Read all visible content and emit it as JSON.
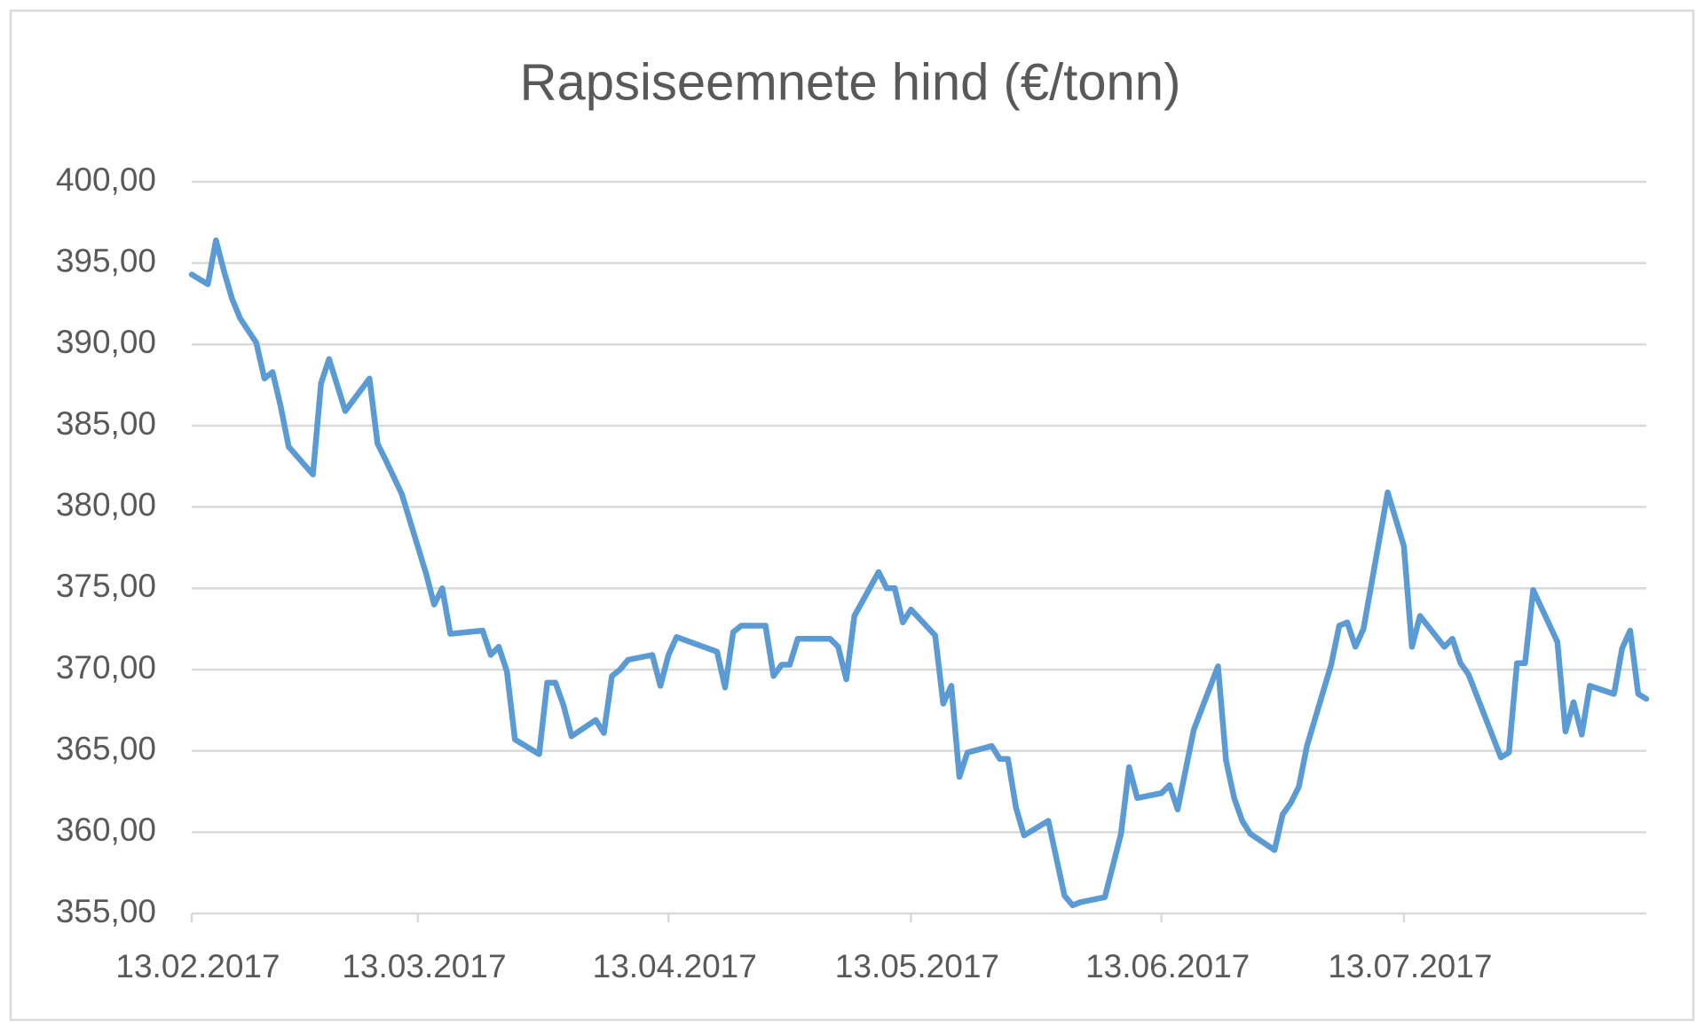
{
  "chart_data": {
    "type": "line",
    "title": "Rapsiseemnete hind (€/tonn)",
    "x": [
      "2017-02-13",
      "2017-02-15",
      "2017-02-16",
      "2017-02-17",
      "2017-02-18",
      "2017-02-19",
      "2017-02-21",
      "2017-02-22",
      "2017-02-23",
      "2017-02-24",
      "2017-02-25",
      "2017-02-28",
      "2017-03-01",
      "2017-03-02",
      "2017-03-04",
      "2017-03-07",
      "2017-03-08",
      "2017-03-09",
      "2017-03-11",
      "2017-03-14",
      "2017-03-15",
      "2017-03-16",
      "2017-03-17",
      "2017-03-21",
      "2017-03-22",
      "2017-03-23",
      "2017-03-24",
      "2017-03-25",
      "2017-03-28",
      "2017-03-29",
      "2017-03-30",
      "2017-03-31",
      "2017-04-01",
      "2017-04-04",
      "2017-04-05",
      "2017-04-06",
      "2017-04-07",
      "2017-04-08",
      "2017-04-11",
      "2017-04-12",
      "2017-04-13",
      "2017-04-14",
      "2017-04-19",
      "2017-04-20",
      "2017-04-21",
      "2017-04-22",
      "2017-04-25",
      "2017-04-26",
      "2017-04-27",
      "2017-04-28",
      "2017-04-29",
      "2017-05-03",
      "2017-05-04",
      "2017-05-05",
      "2017-05-06",
      "2017-05-09",
      "2017-05-10",
      "2017-05-11",
      "2017-05-12",
      "2017-05-13",
      "2017-05-16",
      "2017-05-17",
      "2017-05-18",
      "2017-05-19",
      "2017-05-20",
      "2017-05-23",
      "2017-05-24",
      "2017-05-25",
      "2017-05-26",
      "2017-05-27",
      "2017-05-30",
      "2017-06-01",
      "2017-06-02",
      "2017-06-03",
      "2017-06-06",
      "2017-06-08",
      "2017-06-09",
      "2017-06-10",
      "2017-06-13",
      "2017-06-14",
      "2017-06-15",
      "2017-06-17",
      "2017-06-20",
      "2017-06-21",
      "2017-06-22",
      "2017-06-23",
      "2017-06-24",
      "2017-06-27",
      "2017-06-28",
      "2017-06-29",
      "2017-06-30",
      "2017-07-01",
      "2017-07-04",
      "2017-07-05",
      "2017-07-06",
      "2017-07-07",
      "2017-07-08",
      "2017-07-11",
      "2017-07-13",
      "2017-07-14",
      "2017-07-15",
      "2017-07-18",
      "2017-07-19",
      "2017-07-20",
      "2017-07-21",
      "2017-07-25",
      "2017-07-26",
      "2017-07-27",
      "2017-07-28",
      "2017-07-29",
      "2017-08-01",
      "2017-08-02",
      "2017-08-03",
      "2017-08-04",
      "2017-08-05",
      "2017-08-08",
      "2017-08-09",
      "2017-08-10",
      "2017-08-11",
      "2017-08-12"
    ],
    "values": [
      394.3,
      393.7,
      396.4,
      394.5,
      392.8,
      391.6,
      390.1,
      387.9,
      388.3,
      386.2,
      383.7,
      382.0,
      387.6,
      389.1,
      385.9,
      387.9,
      383.9,
      382.9,
      380.8,
      375.9,
      374.0,
      375.0,
      372.2,
      372.4,
      370.9,
      371.4,
      369.9,
      365.7,
      364.8,
      369.2,
      369.2,
      367.8,
      365.9,
      366.9,
      366.1,
      369.6,
      370.0,
      370.6,
      370.9,
      369.0,
      370.9,
      372.0,
      371.1,
      368.9,
      372.3,
      372.7,
      372.7,
      369.6,
      370.3,
      370.3,
      371.9,
      371.9,
      371.4,
      369.4,
      373.3,
      376.0,
      375.0,
      375.0,
      372.9,
      373.7,
      372.1,
      367.9,
      369.0,
      363.4,
      364.9,
      365.3,
      364.5,
      364.5,
      361.5,
      359.8,
      360.7,
      356.1,
      355.5,
      355.7,
      356.0,
      359.9,
      364.0,
      362.1,
      362.4,
      362.9,
      361.4,
      366.3,
      370.2,
      364.4,
      362.1,
      360.7,
      359.9,
      358.9,
      361.1,
      361.8,
      362.8,
      365.3,
      370.3,
      372.7,
      372.9,
      371.4,
      372.5,
      380.9,
      377.6,
      371.4,
      373.3,
      371.4,
      371.9,
      370.4,
      369.7,
      364.6,
      364.9,
      370.4,
      370.4,
      374.9,
      371.7,
      366.2,
      368.0,
      366.0,
      369.0,
      368.5,
      371.3,
      372.4,
      368.5,
      368.2
    ],
    "color": "#5b9bd5",
    "xlim": [
      "2017-02-13",
      "2017-08-12"
    ],
    "xticks": [
      {
        "value": "2017-02-13",
        "label": "13.02.2017"
      },
      {
        "value": "2017-03-13",
        "label": "13.03.2017"
      },
      {
        "value": "2017-04-13",
        "label": "13.04.2017"
      },
      {
        "value": "2017-05-13",
        "label": "13.05.2017"
      },
      {
        "value": "2017-06-13",
        "label": "13.06.2017"
      },
      {
        "value": "2017-07-13",
        "label": "13.07.2017"
      }
    ],
    "ylim": [
      355,
      400
    ],
    "yticks": [
      {
        "value": 355,
        "label": "355,00"
      },
      {
        "value": 360,
        "label": "360,00"
      },
      {
        "value": 365,
        "label": "365,00"
      },
      {
        "value": 370,
        "label": "370,00"
      },
      {
        "value": 375,
        "label": "375,00"
      },
      {
        "value": 380,
        "label": "380,00"
      },
      {
        "value": 385,
        "label": "385,00"
      },
      {
        "value": 390,
        "label": "390,00"
      },
      {
        "value": 395,
        "label": "395,00"
      },
      {
        "value": 400,
        "label": "400,00"
      }
    ],
    "grid": true
  }
}
